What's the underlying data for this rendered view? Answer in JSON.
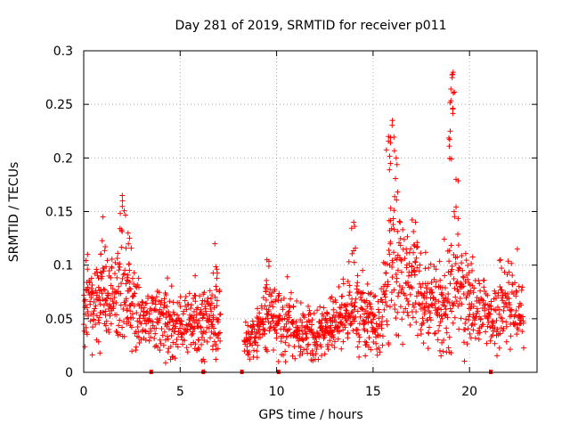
{
  "chart_data": {
    "type": "scatter",
    "title": "Day 281 of 2019, SRMTID for receiver p011",
    "xlabel": "GPS time / hours",
    "ylabel": "SRMTID / TECUs",
    "xlim": [
      0,
      23.5
    ],
    "ylim": [
      0,
      0.3
    ],
    "xticks": [
      0,
      5,
      10,
      15,
      20
    ],
    "xtick_labels": [
      "0",
      "5",
      "10",
      "15",
      "20"
    ],
    "yticks": [
      0,
      0.05,
      0.1,
      0.15,
      0.2,
      0.25,
      0.3
    ],
    "ytick_labels": [
      "0",
      "0.05",
      "0.1",
      "0.15",
      "0.2",
      "0.25",
      "0.3"
    ],
    "grid": true,
    "marker": "plus",
    "color": "#ff0000",
    "gaps_hours": [
      [
        7.1,
        8.3
      ],
      [
        22.8,
        23.5
      ]
    ],
    "highlight_points": [
      {
        "x": 0.2,
        "y": 0.11
      },
      {
        "x": 1.0,
        "y": 0.145
      },
      {
        "x": 2.0,
        "y": 0.165
      },
      {
        "x": 2.3,
        "y": 0.13
      },
      {
        "x": 6.8,
        "y": 0.12
      },
      {
        "x": 9.5,
        "y": 0.105
      },
      {
        "x": 14.0,
        "y": 0.14
      },
      {
        "x": 15.8,
        "y": 0.22
      },
      {
        "x": 16.0,
        "y": 0.235
      },
      {
        "x": 16.2,
        "y": 0.2
      },
      {
        "x": 17.2,
        "y": 0.14
      },
      {
        "x": 19.0,
        "y": 0.225
      },
      {
        "x": 19.1,
        "y": 0.275
      },
      {
        "x": 19.15,
        "y": 0.28
      },
      {
        "x": 19.3,
        "y": 0.18
      },
      {
        "x": 12.0,
        "y": 0.012
      },
      {
        "x": 10.1,
        "y": 0.01
      },
      {
        "x": 6.2,
        "y": 0.012
      }
    ],
    "series": [
      {
        "name": "SRMTID",
        "description": "dense per-epoch samples, hourly envelope",
        "profile_hours": [
          0,
          0.5,
          1,
          1.5,
          2,
          2.5,
          3,
          3.5,
          4,
          4.5,
          5,
          5.5,
          6,
          6.5,
          7,
          8.3,
          8.6,
          9,
          9.5,
          10,
          10.5,
          11,
          11.5,
          12,
          12.5,
          13,
          13.5,
          14,
          14.5,
          15,
          15.5,
          16,
          16.5,
          17,
          17.5,
          18,
          18.5,
          19,
          19.5,
          20,
          20.5,
          21,
          21.5,
          22,
          22.5,
          22.8
        ],
        "profile_median": [
          0.06,
          0.065,
          0.07,
          0.065,
          0.075,
          0.065,
          0.055,
          0.05,
          0.05,
          0.045,
          0.045,
          0.05,
          0.045,
          0.045,
          0.055,
          0.03,
          0.03,
          0.04,
          0.05,
          0.055,
          0.045,
          0.04,
          0.035,
          0.035,
          0.04,
          0.045,
          0.055,
          0.06,
          0.06,
          0.045,
          0.05,
          0.1,
          0.09,
          0.08,
          0.075,
          0.065,
          0.06,
          0.07,
          0.075,
          0.065,
          0.055,
          0.05,
          0.06,
          0.065,
          0.06,
          0.05
        ],
        "profile_spread": [
          0.02,
          0.025,
          0.03,
          0.025,
          0.035,
          0.03,
          0.02,
          0.02,
          0.02,
          0.02,
          0.02,
          0.02,
          0.02,
          0.02,
          0.025,
          0.01,
          0.012,
          0.015,
          0.02,
          0.022,
          0.02,
          0.018,
          0.015,
          0.015,
          0.018,
          0.02,
          0.022,
          0.025,
          0.025,
          0.02,
          0.025,
          0.045,
          0.04,
          0.03,
          0.028,
          0.025,
          0.025,
          0.04,
          0.035,
          0.025,
          0.02,
          0.02,
          0.025,
          0.025,
          0.022,
          0.018
        ]
      }
    ],
    "baseline_marks_hours": [
      3.5,
      6.2,
      8.2,
      10.1,
      21.1
    ]
  }
}
